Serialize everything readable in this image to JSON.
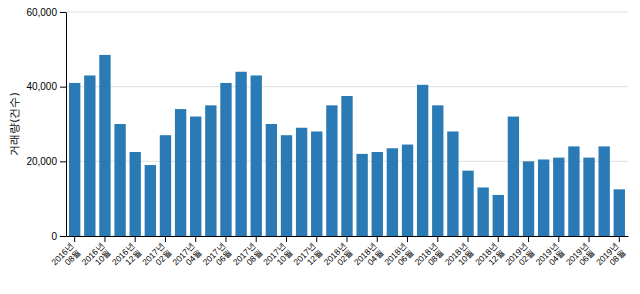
{
  "chart_data": {
    "type": "bar",
    "categories": [
      "2016년\n08월",
      null,
      "2016년\n10월",
      null,
      "2016년\n12월",
      null,
      "2017년\n02월",
      null,
      "2017년\n04월",
      null,
      "2017년\n06월",
      null,
      "2017년\n08월",
      null,
      "2017년\n10월",
      null,
      "2017년\n12월",
      null,
      "2018년\n02월",
      null,
      "2018년\n04월",
      null,
      "2018년\n06월",
      null,
      "2018년\n08월",
      null,
      "2018년\n10월",
      null,
      "2018년\n12월",
      null,
      "2019년\n02월",
      null,
      "2019년\n04월",
      null,
      "2019년\n06월",
      null,
      "2019년\n08월"
    ],
    "values": [
      41000,
      43000,
      48500,
      30000,
      22500,
      19000,
      27000,
      34000,
      32000,
      35000,
      41000,
      44000,
      43000,
      30000,
      27000,
      29000,
      28000,
      35000,
      37500,
      22000,
      22500,
      23500,
      24500,
      40500,
      35000,
      28000,
      17500,
      13000,
      11000,
      32000,
      20000,
      20500,
      21000,
      24000,
      21000,
      24000,
      12500
    ],
    "color": "#2a7ab5",
    "ylabel": "거래량(건수)",
    "ylim": [
      0,
      60000
    ],
    "yticks": [
      0,
      {
        "value": 20000,
        "label": "20,000"
      },
      {
        "value": 40000,
        "label": "40,000"
      },
      {
        "value": 60000,
        "label": "60,000"
      }
    ],
    "grid": true
  }
}
